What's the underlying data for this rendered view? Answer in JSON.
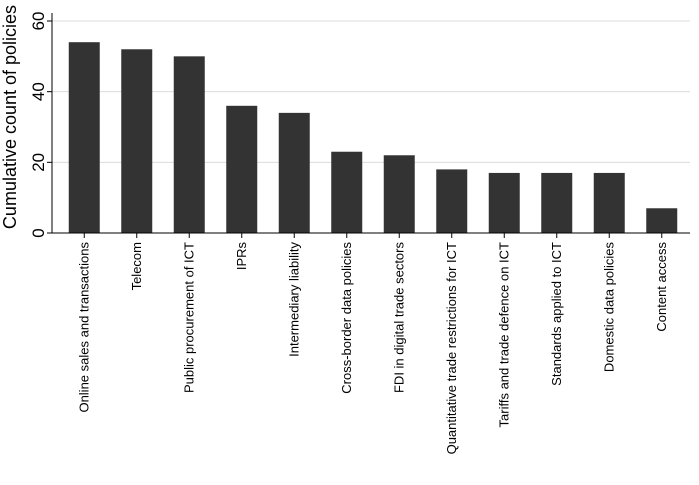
{
  "chart_data": {
    "type": "bar",
    "ylabel": "Cumulative count of policies",
    "xlabel": "",
    "ylim": [
      0,
      60
    ],
    "yticks": [
      0,
      20,
      40,
      60
    ],
    "grid": true,
    "bar_color": "#333333",
    "grid_color": "#dcdcdc",
    "categories": [
      "Online sales and transactions",
      "Telecom",
      "Public procurement of ICT",
      "IPRs",
      "Intermediary liability",
      "Cross-border data policies",
      "FDI in digital trade sectors",
      "Quantitative trade restrictions for ICT",
      "Tariffs and trade defence on ICT",
      "Standards applied to ICT",
      "Domestic data policies",
      "Content access"
    ],
    "values": [
      54,
      52,
      50,
      36,
      34,
      23,
      22,
      18,
      17,
      17,
      17,
      7
    ]
  }
}
